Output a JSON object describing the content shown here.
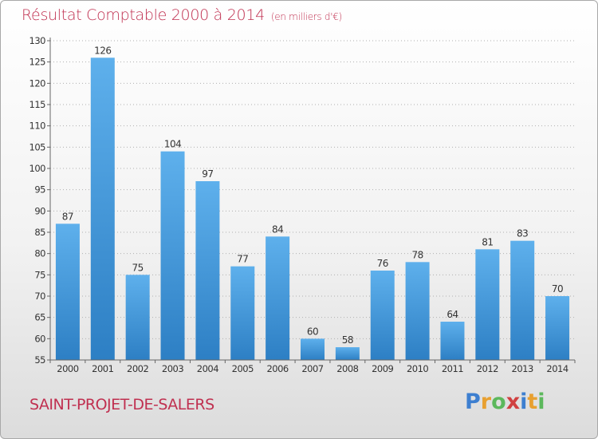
{
  "title": "Résultat Comptable 2000 à 2014",
  "subtitle": "(en milliers d'€)",
  "commune": "SAINT-PROJET-DE-SALERS",
  "brand": {
    "letters": [
      "P",
      "r",
      "o",
      "x",
      "i",
      "t",
      "i"
    ],
    "colors": [
      "#3d7fd0",
      "#e8a030",
      "#5cb85c",
      "#d04040",
      "#3d7fd0",
      "#e8a030",
      "#5cb85c"
    ]
  },
  "colors": {
    "bar_light": "#5eb0ec",
    "bar_dark": "#2d7fc4",
    "title": "#c03050"
  },
  "chart_data": {
    "type": "bar",
    "categories": [
      "2000",
      "2001",
      "2002",
      "2003",
      "2004",
      "2005",
      "2006",
      "2007",
      "2008",
      "2009",
      "2010",
      "2011",
      "2012",
      "2013",
      "2014"
    ],
    "values": [
      87,
      126,
      75,
      104,
      97,
      77,
      84,
      60,
      58,
      76,
      78,
      64,
      81,
      83,
      70
    ],
    "ylim": [
      55,
      130
    ],
    "yticks": [
      55,
      60,
      65,
      70,
      75,
      80,
      85,
      90,
      95,
      100,
      105,
      110,
      115,
      120,
      125,
      130
    ],
    "grid": "horizontal dotted",
    "data_labels": true
  }
}
